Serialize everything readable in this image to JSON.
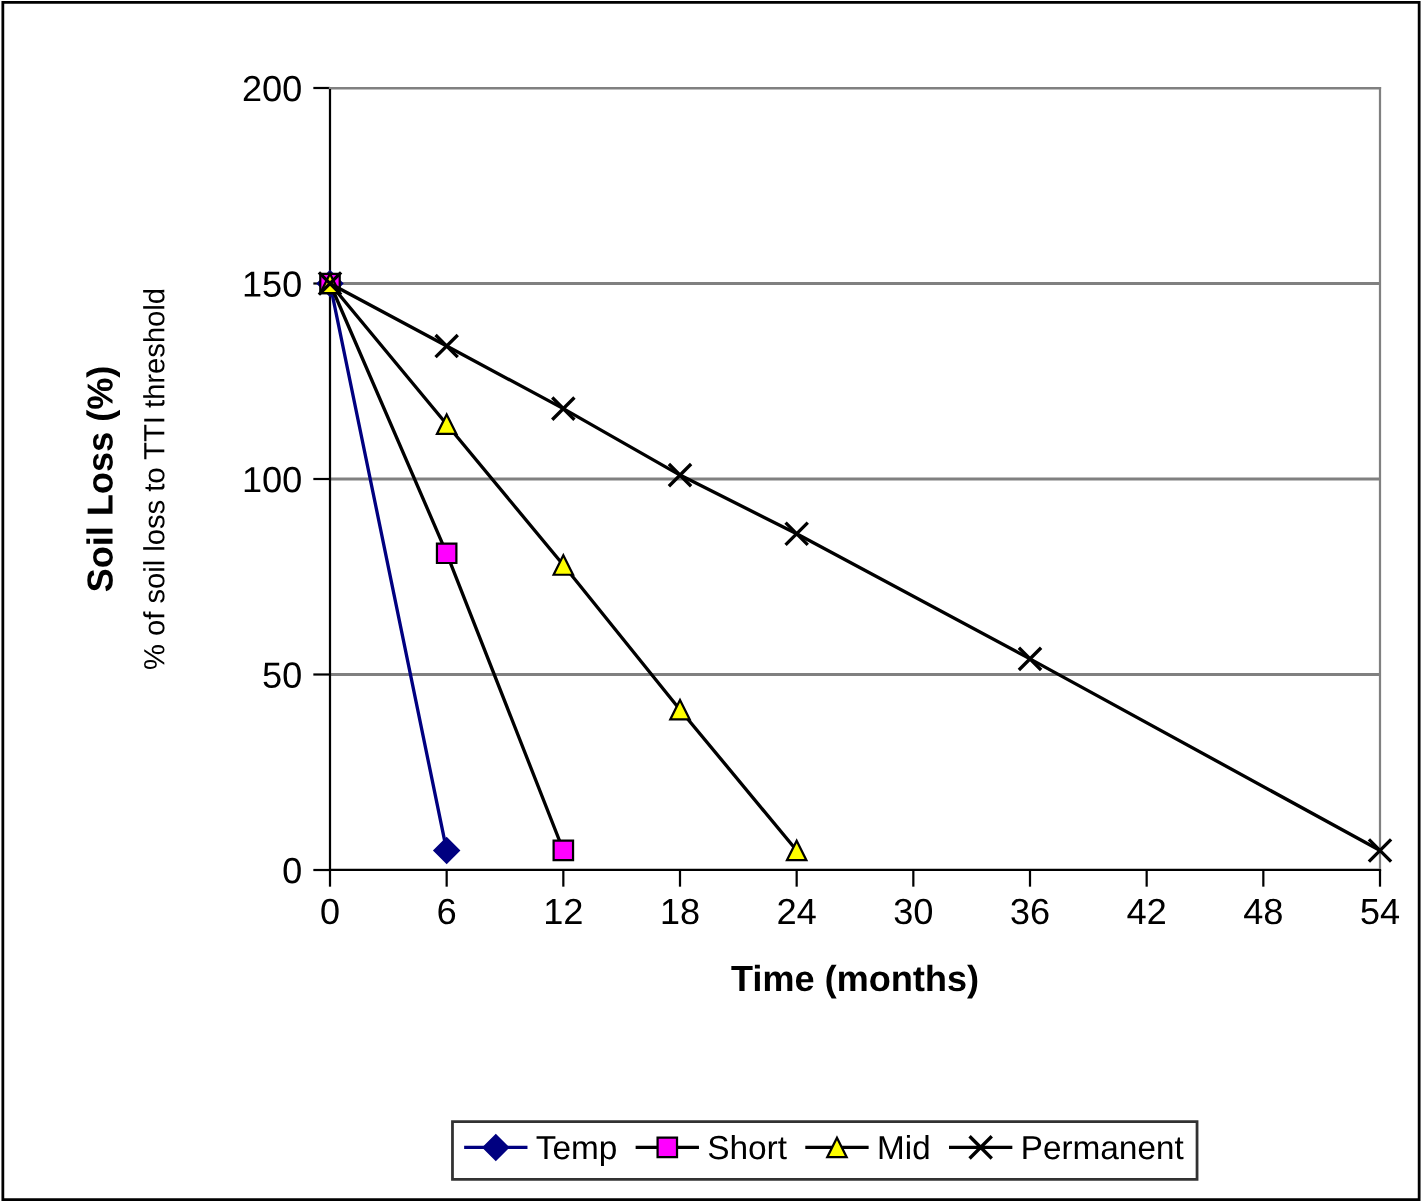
{
  "chart_data": {
    "type": "line",
    "xlabel": "Time (months)",
    "ylabel": "Soil Loss (%)",
    "subtitle": "% of soil loss to TTI threshold",
    "xlim": [
      0,
      54
    ],
    "xticks": [
      0,
      6,
      12,
      18,
      24,
      30,
      36,
      42,
      48,
      54
    ],
    "ylim": [
      0,
      200
    ],
    "yticks": [
      0,
      50,
      100,
      150,
      200
    ],
    "grid": "y",
    "legend": "bottom",
    "series": [
      {
        "name": "Temp",
        "color": "#000080",
        "marker": "diamond",
        "x": [
          0,
          6
        ],
        "values": [
          150,
          5
        ]
      },
      {
        "name": "Short",
        "color": "#ff00ff",
        "marker": "square",
        "x": [
          0,
          6,
          12
        ],
        "values": [
          150,
          81,
          5
        ]
      },
      {
        "name": "Mid",
        "color": "#ffff00",
        "marker": "triangle",
        "x": [
          0,
          6,
          12,
          18,
          24
        ],
        "values": [
          150,
          114,
          78,
          41,
          5
        ]
      },
      {
        "name": "Permanent",
        "color": "#000000",
        "marker": "cross",
        "x": [
          0,
          6,
          12,
          18,
          24,
          36,
          54
        ],
        "values": [
          150,
          134,
          118,
          101,
          86,
          54,
          5
        ]
      }
    ]
  }
}
